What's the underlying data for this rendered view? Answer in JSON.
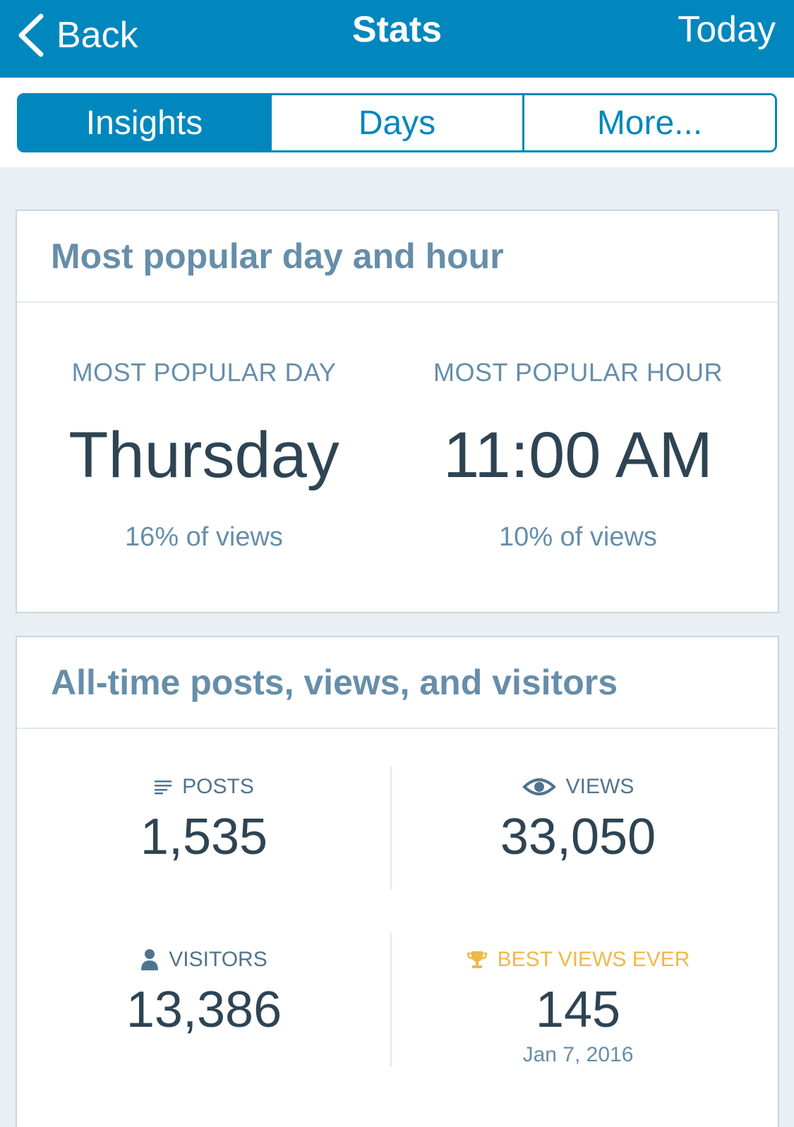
{
  "nav": {
    "back_label": "Back",
    "title": "Stats",
    "today_label": "Today"
  },
  "tabs": [
    {
      "label": "Insights",
      "active": true
    },
    {
      "label": "Days",
      "active": false
    },
    {
      "label": "More...",
      "active": false
    }
  ],
  "popular": {
    "title": "Most popular day and hour",
    "day": {
      "label": "MOST POPULAR DAY",
      "value": "Thursday",
      "percent": "16% of views"
    },
    "hour": {
      "label": "MOST POPULAR HOUR",
      "value": "11:00 AM",
      "percent": "10% of views"
    }
  },
  "alltime": {
    "title": "All-time posts, views, and visitors",
    "posts": {
      "label": "POSTS",
      "value": "1,535",
      "icon": "posts-icon"
    },
    "views": {
      "label": "VIEWS",
      "value": "33,050",
      "icon": "eye-icon"
    },
    "visitors": {
      "label": "VISITORS",
      "value": "13,386",
      "icon": "person-icon"
    },
    "best": {
      "label": "BEST VIEWS EVER",
      "value": "145",
      "date": "Jan 7, 2016",
      "icon": "trophy-icon"
    }
  },
  "colors": {
    "brand": "#0087be",
    "heading": "#668eaa",
    "value": "#2e4453",
    "gold": "#f0b849",
    "background": "#e9eff3"
  }
}
